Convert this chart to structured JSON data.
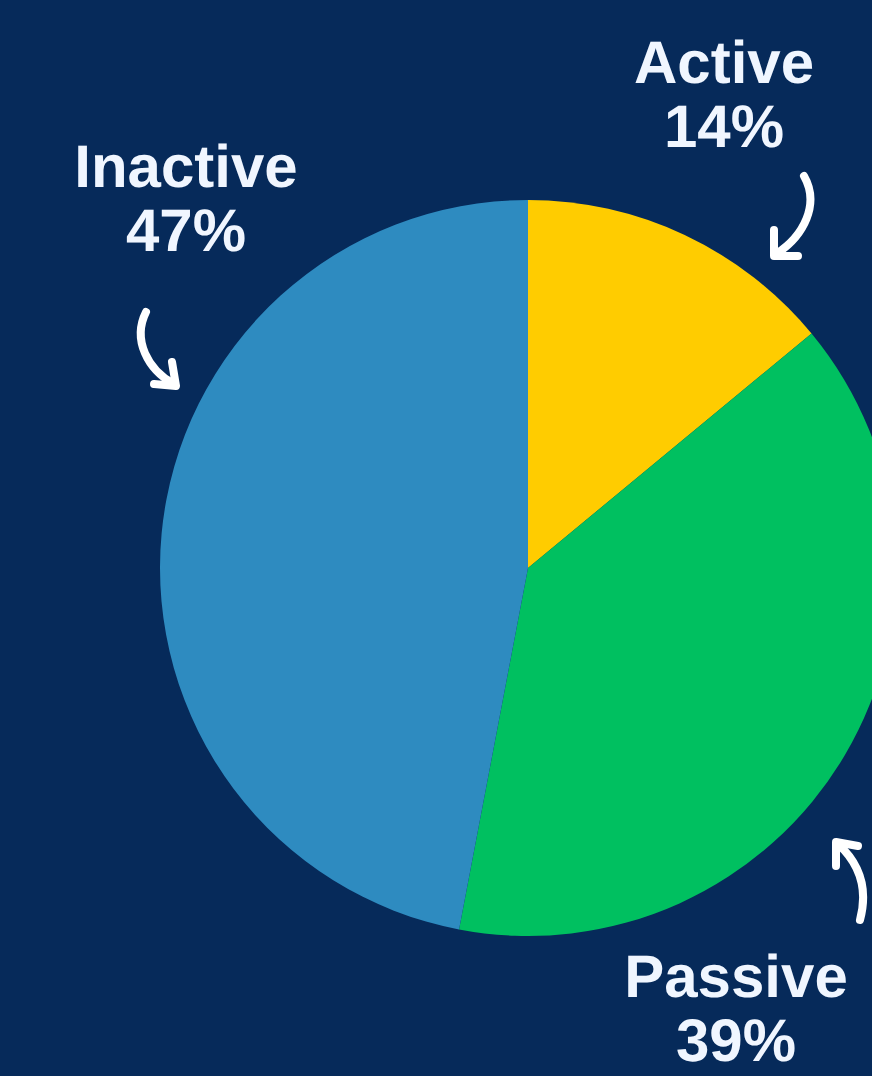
{
  "chart_data": {
    "type": "pie",
    "categories": [
      "Active",
      "Passive",
      "Inactive"
    ],
    "values": [
      14,
      39,
      47
    ],
    "colors": [
      "#ffcc00",
      "#00c060",
      "#2e8bc0"
    ],
    "value_labels": [
      "14%",
      "39%",
      "47%"
    ],
    "legend": false
  }
}
